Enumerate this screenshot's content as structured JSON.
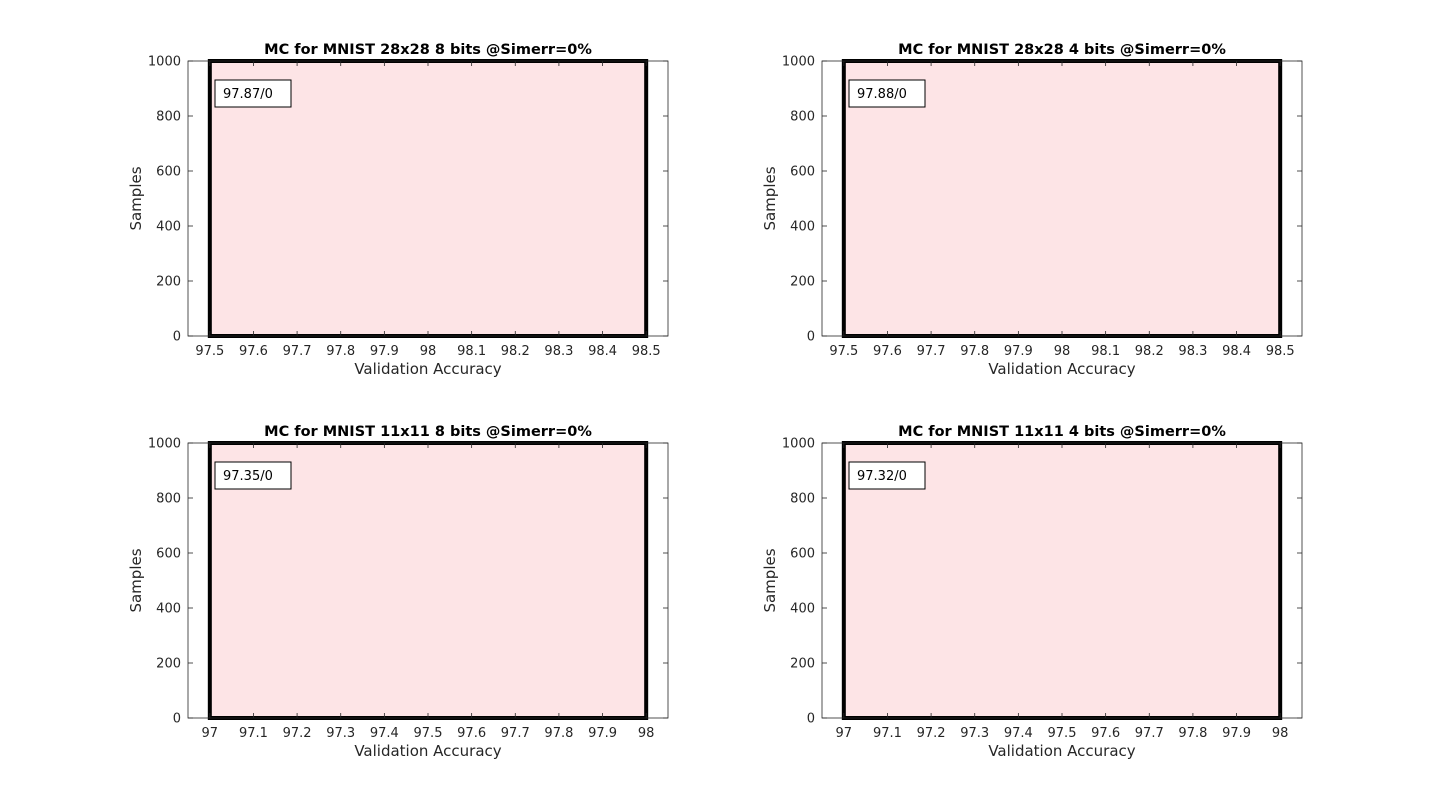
{
  "chart_data": [
    {
      "type": "bar",
      "title": "MC for MNIST 28x28 8 bits @Simerr=0%",
      "xlabel": "Validation Accuracy",
      "ylabel": "Samples",
      "xlim": [
        97.45,
        98.55
      ],
      "ylim": [
        0,
        1000
      ],
      "xticks": [
        "97.5",
        "97.6",
        "97.7",
        "97.8",
        "97.9",
        "98",
        "98.1",
        "98.2",
        "98.3",
        "98.4",
        "98.5"
      ],
      "yticks": [
        "0",
        "200",
        "400",
        "600",
        "800",
        "1000"
      ],
      "bin": [
        97.5,
        98.5
      ],
      "values": [
        1000
      ],
      "annotation": "97.87/0",
      "fill_color": "#fde4e6",
      "edge_color": "#000000"
    },
    {
      "type": "bar",
      "title": "MC for MNIST 28x28 4 bits @Simerr=0%",
      "xlabel": "Validation Accuracy",
      "ylabel": "Samples",
      "xlim": [
        97.45,
        98.55
      ],
      "ylim": [
        0,
        1000
      ],
      "xticks": [
        "97.5",
        "97.6",
        "97.7",
        "97.8",
        "97.9",
        "98",
        "98.1",
        "98.2",
        "98.3",
        "98.4",
        "98.5"
      ],
      "yticks": [
        "0",
        "200",
        "400",
        "600",
        "800",
        "1000"
      ],
      "bin": [
        97.5,
        98.5
      ],
      "values": [
        1000
      ],
      "annotation": "97.88/0",
      "fill_color": "#fde4e6",
      "edge_color": "#000000"
    },
    {
      "type": "bar",
      "title": "MC for MNIST 11x11 8 bits @Simerr=0%",
      "xlabel": "Validation Accuracy",
      "ylabel": "Samples",
      "xlim": [
        96.95,
        98.05
      ],
      "ylim": [
        0,
        1000
      ],
      "xticks": [
        "97",
        "97.1",
        "97.2",
        "97.3",
        "97.4",
        "97.5",
        "97.6",
        "97.7",
        "97.8",
        "97.9",
        "98"
      ],
      "yticks": [
        "0",
        "200",
        "400",
        "600",
        "800",
        "1000"
      ],
      "bin": [
        97.0,
        98.0
      ],
      "values": [
        1000
      ],
      "annotation": "97.35/0",
      "fill_color": "#fde4e6",
      "edge_color": "#000000"
    },
    {
      "type": "bar",
      "title": "MC for MNIST 11x11 4 bits @Simerr=0%",
      "xlabel": "Validation Accuracy",
      "ylabel": "Samples",
      "xlim": [
        96.95,
        98.05
      ],
      "ylim": [
        0,
        1000
      ],
      "xticks": [
        "97",
        "97.1",
        "97.2",
        "97.3",
        "97.4",
        "97.5",
        "97.6",
        "97.7",
        "97.8",
        "97.9",
        "98"
      ],
      "yticks": [
        "0",
        "200",
        "400",
        "600",
        "800",
        "1000"
      ],
      "bin": [
        97.0,
        98.0
      ],
      "values": [
        1000
      ],
      "annotation": "97.32/0",
      "fill_color": "#fde4e6",
      "edge_color": "#000000"
    }
  ]
}
